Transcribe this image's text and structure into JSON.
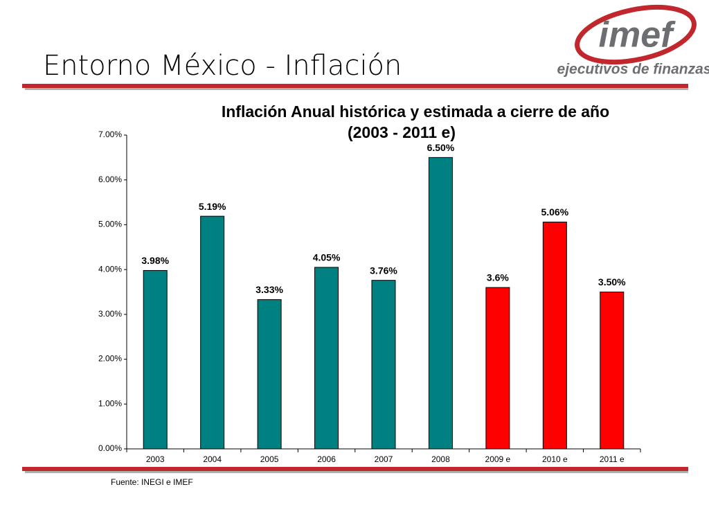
{
  "slide_title": "Entorno México - Inflación",
  "logo": {
    "name": "imef",
    "tagline": "ejecutivos de finanzas"
  },
  "source": "Fuente: INEGI e IMEF",
  "chart_data": {
    "type": "bar",
    "title": "Inflación Anual histórica y estimada a cierre de año",
    "subtitle": "(2003 - 2011 e)",
    "categories": [
      "2003",
      "2004",
      "2005",
      "2006",
      "2007",
      "2008",
      "2009 e",
      "2010 e",
      "2011 e"
    ],
    "values": [
      3.98,
      5.19,
      3.33,
      4.05,
      3.76,
      6.5,
      3.6,
      5.06,
      3.5
    ],
    "value_labels": [
      "3.98%",
      "5.19%",
      "3.33%",
      "4.05%",
      "3.76%",
      "6.50%",
      "3.6%",
      "5.06%",
      "3.50%"
    ],
    "colors": [
      "#008080",
      "#008080",
      "#008080",
      "#008080",
      "#008080",
      "#008080",
      "#ff0000",
      "#ff0000",
      "#ff0000"
    ],
    "ylim": [
      0,
      7
    ],
    "yticks": [
      {
        "value": 0,
        "label": "0.00%"
      },
      {
        "value": 1,
        "label": "1.00%"
      },
      {
        "value": 2,
        "label": "2.00%"
      },
      {
        "value": 3,
        "label": "3.00%"
      },
      {
        "value": 4,
        "label": "4.00%"
      },
      {
        "value": 5,
        "label": "5.00%"
      },
      {
        "value": 6,
        "label": "6.00%"
      },
      {
        "value": 7,
        "label": "7.00%"
      }
    ],
    "grid": false
  }
}
